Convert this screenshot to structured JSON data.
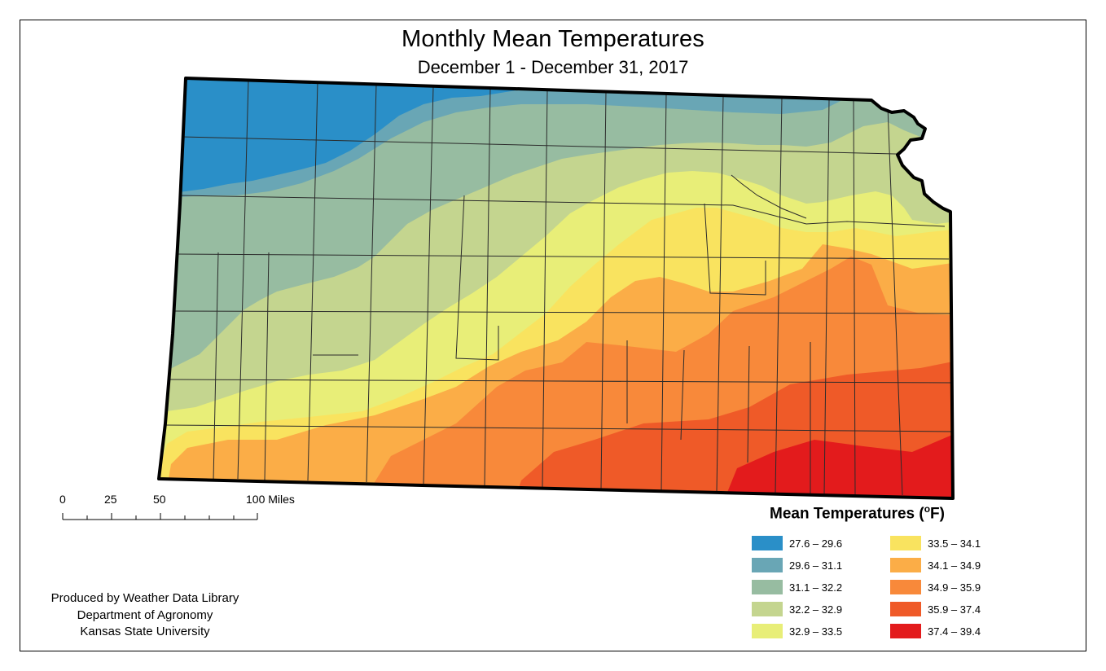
{
  "title": "Monthly Mean Temperatures",
  "subtitle": "December 1 - December 31, 2017",
  "scale_bar": {
    "labels": [
      "0",
      "25",
      "50",
      "100 Miles"
    ]
  },
  "legend": {
    "title": "Mean Temperatures (",
    "unit_degree": "o",
    "unit_rest": "F)",
    "classes": [
      {
        "label": "27.6 – 29.6",
        "color": "#2a8fc8"
      },
      {
        "label": "29.6 – 31.1",
        "color": "#69a6b5"
      },
      {
        "label": "31.1 – 32.2",
        "color": "#97bca1"
      },
      {
        "label": "32.2 – 32.9",
        "color": "#c4d58f"
      },
      {
        "label": "32.9 – 33.5",
        "color": "#e8ee78"
      },
      {
        "label": "33.5 – 34.1",
        "color": "#f9e35f"
      },
      {
        "label": "34.1 – 34.9",
        "color": "#fbad47"
      },
      {
        "label": "34.9 – 35.9",
        "color": "#f8893a"
      },
      {
        "label": "35.9 – 37.4",
        "color": "#ef5a28"
      },
      {
        "label": "37.4 – 39.4",
        "color": "#e31b1c"
      }
    ]
  },
  "credits": [
    "Produced by Weather Data Library",
    "Department of Agronomy",
    "Kansas State University"
  ]
}
